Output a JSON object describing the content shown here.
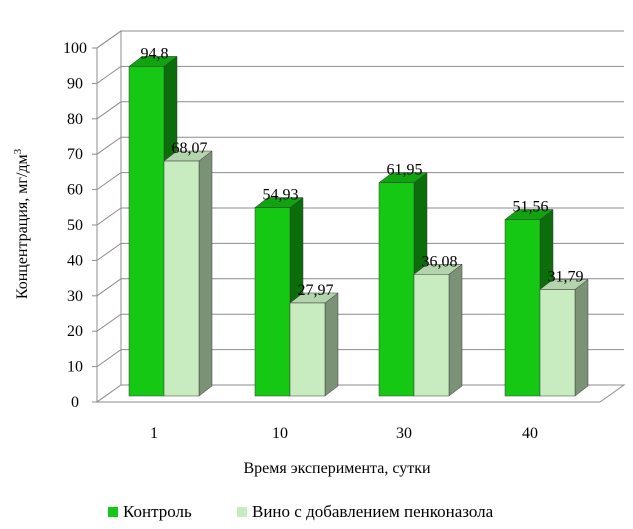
{
  "chart_data": {
    "type": "bar",
    "categories": [
      "1",
      "10",
      "30",
      "40"
    ],
    "series": [
      {
        "name": "Контроль",
        "values": [
          94.8,
          54.93,
          61.95,
          51.56
        ],
        "labels": [
          "94,8",
          "54,93",
          "61,95",
          "51,56"
        ],
        "color": "#14c814"
      },
      {
        "name": "Вино с добавлением пенконазола",
        "values": [
          68.07,
          27.97,
          36.08,
          31.79
        ],
        "labels": [
          "68,07",
          "27,97",
          "36,08",
          "31,79"
        ],
        "color": "#c8ecc0"
      }
    ],
    "xlabel": "Время эксперимента, сутки",
    "ylabel": "Концентрация, мг/дм³",
    "ylim": [
      0,
      100
    ],
    "yticks": [
      "0",
      "10",
      "20",
      "30",
      "40",
      "50",
      "60",
      "70",
      "80",
      "90",
      "100"
    ],
    "grid": true,
    "legend_position": "bottom"
  }
}
